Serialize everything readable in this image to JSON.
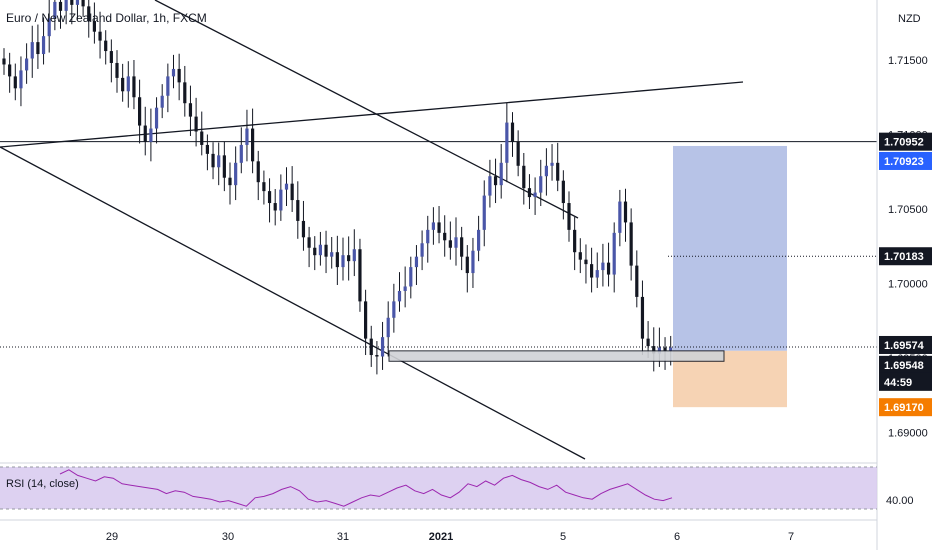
{
  "header": {
    "symbol_title": "Euro / New Zealand Dollar, 1h, FXCM"
  },
  "price_axis": {
    "currency": "NZD",
    "ticks": [
      "1.71500",
      "1.71000",
      "1.70500",
      "1.70000",
      "1.69500",
      "1.69000"
    ]
  },
  "price_labels": [
    {
      "text": "1.70952",
      "role": "horizontal-line-level",
      "bg": "#131722",
      "fg": "#ffffff"
    },
    {
      "text": "1.70923",
      "role": "target-level",
      "bg": "#2962ff",
      "fg": "#ffffff"
    },
    {
      "text": "1.70183",
      "role": "dotted-line-level",
      "bg": "#131722",
      "fg": "#ffffff"
    },
    {
      "text": "1.69574",
      "role": "last-price",
      "bg": "#131722",
      "fg": "#ffffff"
    },
    {
      "text": "1.69548",
      "role": "entry-level",
      "bg": "#131722",
      "fg": "#ffffff"
    },
    {
      "text": "44:59",
      "role": "bar-countdown",
      "bg": "#131722",
      "fg": "#ffffff"
    },
    {
      "text": "1.69170",
      "role": "stop-level",
      "bg": "#f57c00",
      "fg": "#ffffff"
    }
  ],
  "time_axis": {
    "labels": [
      "29",
      "30",
      "31",
      "2021",
      "5",
      "6",
      "7"
    ],
    "highlighted": "2021"
  },
  "rsi": {
    "label": "RSI (14, close)",
    "tick": "40.00",
    "color": "#9c27b0"
  },
  "colors": {
    "bull_candle": "#4a56a8",
    "bear_candle": "#131722",
    "trendline": "#131722",
    "target_zone": "#b3c0e6",
    "stop_zone": "#f5d1b0",
    "support_box": "#d0d2d6",
    "rsi_band": "#d7c9ee"
  },
  "chart_data": [
    {
      "type": "candlestick",
      "title": "Euro / New Zealand Dollar, 1h, FXCM",
      "ylabel": "NZD",
      "ylim": [
        1.6875,
        1.7195
      ],
      "x_ticks": [
        "29",
        "30",
        "31",
        "2021",
        "5",
        "6",
        "7"
      ],
      "y_ticks": [
        1.715,
        1.71,
        1.705,
        1.7,
        1.695,
        1.69
      ],
      "last_price": 1.69574,
      "horizontal_lines": [
        1.70952,
        1.70183,
        1.69574
      ],
      "position": {
        "entry": 1.69548,
        "target": 1.70923,
        "stop": 1.6917
      },
      "support_zone": [
        1.69478,
        1.69548
      ],
      "close_series": [
        1.7147,
        1.7139,
        1.7131,
        1.7143,
        1.7151,
        1.7162,
        1.7154,
        1.7166,
        1.7178,
        1.7189,
        1.7183,
        1.7196,
        1.7187,
        1.7192,
        1.7186,
        1.7176,
        1.7169,
        1.7163,
        1.7156,
        1.7148,
        1.7138,
        1.7129,
        1.7139,
        1.7125,
        1.7106,
        1.7095,
        1.7104,
        1.7118,
        1.7126,
        1.7139,
        1.7144,
        1.7135,
        1.7121,
        1.7112,
        1.7102,
        1.7093,
        1.7087,
        1.7078,
        1.7086,
        1.7071,
        1.7066,
        1.7081,
        1.7093,
        1.7104,
        1.7082,
        1.7068,
        1.7062,
        1.7054,
        1.7049,
        1.7063,
        1.7067,
        1.7056,
        1.7042,
        1.7031,
        1.7024,
        1.7019,
        1.7026,
        1.7018,
        1.7021,
        1.7011,
        1.7019,
        1.7015,
        1.7023,
        1.6988,
        1.6963,
        1.6952,
        1.6951,
        1.6964,
        1.6977,
        1.6988,
        1.6995,
        1.6998,
        1.7011,
        1.7018,
        1.7027,
        1.7036,
        1.7041,
        1.7034,
        1.7029,
        1.7024,
        1.7031,
        1.7018,
        1.7007,
        1.7022,
        1.7036,
        1.7059,
        1.7072,
        1.7066,
        1.7081,
        1.7108,
        1.7095,
        1.7079,
        1.7064,
        1.7058,
        1.7061,
        1.7072,
        1.7079,
        1.7081,
        1.7069,
        1.7054,
        1.7036,
        1.7021,
        1.7016,
        1.7013,
        1.7004,
        1.7009,
        1.7014,
        1.7006,
        1.7034,
        1.7055,
        1.7041,
        1.7012,
        1.6991,
        1.6963,
        1.6958,
        1.6953,
        1.6957,
        1.6955,
        1.6957
      ],
      "series": [
        {
          "name": "RSI (14, close)",
          "values": [
            55,
            58,
            54,
            52,
            50,
            53,
            52,
            48,
            47,
            46,
            45,
            44,
            41,
            43,
            42,
            39,
            38,
            37,
            35,
            36,
            34,
            32,
            38,
            39,
            41,
            44,
            46,
            43,
            37,
            35,
            36,
            34,
            32,
            35,
            38,
            40,
            39,
            42,
            45,
            47,
            43,
            41,
            44,
            40,
            38,
            42,
            48,
            46,
            50,
            47,
            52,
            54,
            51,
            49,
            46,
            44,
            47,
            42,
            40,
            38,
            37,
            41,
            44,
            46,
            48,
            44,
            40,
            37,
            36,
            38
          ]
        }
      ]
    }
  ]
}
